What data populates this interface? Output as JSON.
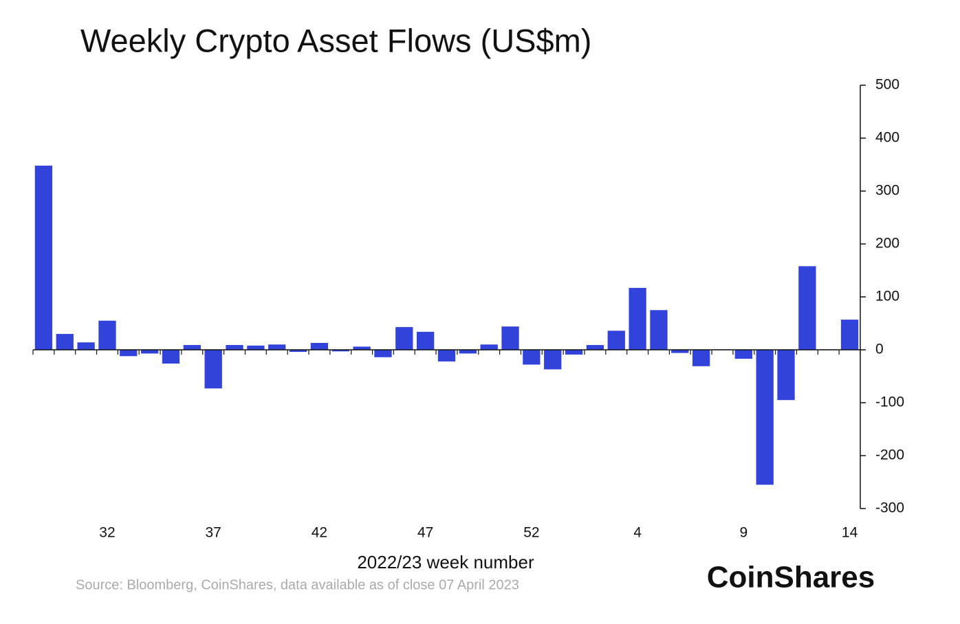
{
  "chart_data": {
    "type": "bar",
    "title": "Weekly Crypto Asset Flows (US$m)",
    "x_label": "2022/23 week number",
    "source": "Source: Bloomberg, CoinShares, data available as of close 07 April 2023",
    "brand": "CoinShares",
    "categories": [
      null,
      null,
      null,
      "32",
      null,
      null,
      null,
      null,
      "37",
      null,
      null,
      null,
      null,
      "42",
      null,
      null,
      null,
      null,
      "47",
      null,
      null,
      null,
      null,
      "52",
      null,
      null,
      null,
      null,
      "4",
      null,
      null,
      null,
      null,
      "9",
      null,
      null,
      null,
      null,
      "14"
    ],
    "values": [
      348,
      30,
      14,
      55,
      -12,
      -7,
      -26,
      9,
      -73,
      9,
      8,
      10,
      -4,
      13,
      -3,
      6,
      -14,
      43,
      34,
      -22,
      -7,
      10,
      44,
      -28,
      -37,
      -9,
      9,
      36,
      117,
      75,
      -6,
      -31,
      1,
      -17,
      -255,
      -95,
      158,
      1,
      57
    ],
    "color": "#3143db",
    "ylim": [
      -300,
      500
    ],
    "yticks": [
      -300,
      -200,
      -100,
      0,
      100,
      200,
      300,
      400,
      500
    ],
    "grid": false
  }
}
